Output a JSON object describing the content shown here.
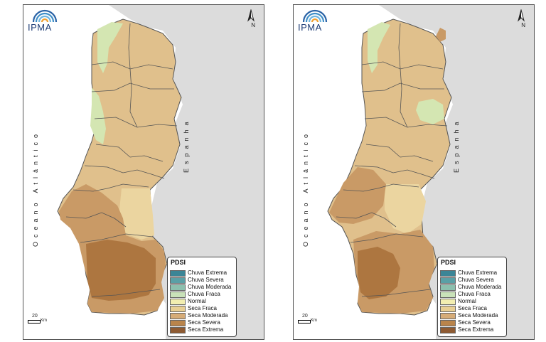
{
  "maps": [
    {
      "logo_text": "IPMA",
      "north_label": "N",
      "ocean_label": "Oceano Atlântico",
      "spain_label": "Espanha",
      "scale_value": "20",
      "scale_unit": "Km",
      "legend": {
        "title": "PDSI",
        "items": [
          {
            "label": "Chuva Extrema",
            "color": "#3b8596"
          },
          {
            "label": "Chuva Severa",
            "color": "#5aa0a6"
          },
          {
            "label": "Chuva Moderada",
            "color": "#8cc0ae"
          },
          {
            "label": "Chuva Fraca",
            "color": "#c9e2b9"
          },
          {
            "label": "Normal",
            "color": "#f2eeb0"
          },
          {
            "label": "Seca Fraca",
            "color": "#e8cf94"
          },
          {
            "label": "Seca Moderada",
            "color": "#d6ac78"
          },
          {
            "label": "Seca Severa",
            "color": "#b9844b"
          },
          {
            "label": "Seca Extrema",
            "color": "#8e5a32"
          }
        ]
      }
    },
    {
      "logo_text": "IPMA",
      "north_label": "N",
      "ocean_label": "Oceano Atlântico",
      "spain_label": "Espanha",
      "scale_value": "20",
      "scale_unit": "Km",
      "legend": {
        "title": "PDSI",
        "items": [
          {
            "label": "Chuva Extrema",
            "color": "#3b8596"
          },
          {
            "label": "Chuva Severa",
            "color": "#5aa0a6"
          },
          {
            "label": "Chuva Moderada",
            "color": "#8cc0ae"
          },
          {
            "label": "Chuva Fraca",
            "color": "#c9e2b9"
          },
          {
            "label": "Normal",
            "color": "#f2eeb0"
          },
          {
            "label": "Seca Fraca",
            "color": "#e8cf94"
          },
          {
            "label": "Seca Moderada",
            "color": "#d6ac78"
          },
          {
            "label": "Seca Severa",
            "color": "#b9844b"
          },
          {
            "label": "Seca Extrema",
            "color": "#8e5a32"
          }
        ]
      }
    }
  ],
  "colors": {
    "spain": "#dcdcdc",
    "sea": "#ffffff",
    "district_border": "#555555"
  }
}
